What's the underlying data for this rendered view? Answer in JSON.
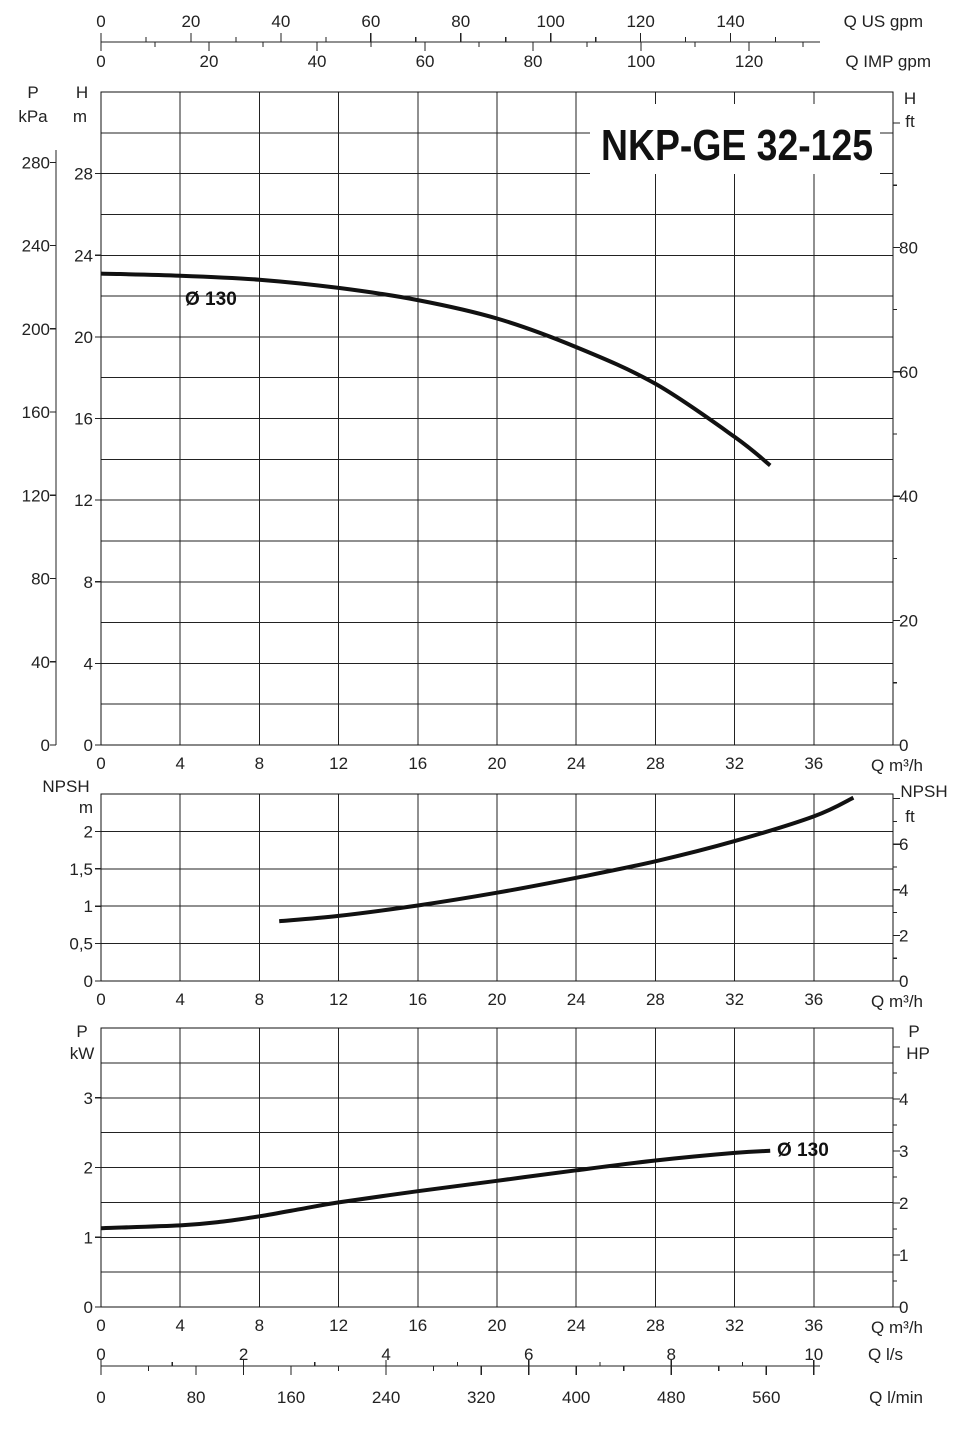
{
  "chart_data": [
    {
      "name": "head",
      "type": "line",
      "title": "NKP-GE 32-125",
      "xlabel": "Q m³/h",
      "xlim": [
        0,
        40
      ],
      "x_ticks": [
        "0",
        "4",
        "8",
        "12",
        "16",
        "20",
        "24",
        "28",
        "32",
        "36"
      ],
      "ylabel_left": "H",
      "ylabel_left_unit": "m",
      "ylim": [
        0,
        32
      ],
      "y_ticks_left": [
        "0",
        "4",
        "8",
        "12",
        "16",
        "20",
        "24",
        "28"
      ],
      "ylabel_kpa": "P",
      "ylabel_kpa_unit": "kPa",
      "y_ticks_kpa": [
        "0",
        "40",
        "80",
        "120",
        "160",
        "200",
        "240",
        "280"
      ],
      "ylabel_right": "H",
      "ylabel_right_unit": "ft",
      "y_ticks_right": [
        "0",
        "20",
        "40",
        "60",
        "80"
      ],
      "top_axis_us": {
        "label": "Q US gpm",
        "ticks": [
          "0",
          "20",
          "40",
          "60",
          "80",
          "100",
          "120",
          "140"
        ]
      },
      "top_axis_imp": {
        "label": "Q IMP gpm",
        "ticks": [
          "0",
          "20",
          "40",
          "60",
          "80",
          "100",
          "120"
        ]
      },
      "series": [
        {
          "name": "Ø 130",
          "x": [
            0,
            4,
            8,
            12,
            16,
            20,
            24,
            28,
            32,
            33.8
          ],
          "y": [
            23.1,
            23.0,
            22.8,
            22.4,
            21.8,
            20.9,
            19.5,
            17.7,
            15.1,
            13.7
          ]
        }
      ],
      "grid": true
    },
    {
      "name": "npsh",
      "type": "line",
      "xlabel": "Q m³/h",
      "xlim": [
        0,
        40
      ],
      "x_ticks": [
        "0",
        "4",
        "8",
        "12",
        "16",
        "20",
        "24",
        "28",
        "32",
        "36"
      ],
      "ylabel_left": "NPSH",
      "ylabel_left_unit": "m",
      "ylim": [
        0,
        2.5
      ],
      "y_ticks_left": [
        "0",
        "0,5",
        "1",
        "1,5",
        "2"
      ],
      "ylabel_right": "NPSH",
      "ylabel_right_unit": "ft",
      "y_ticks_right": [
        "0",
        "2",
        "4",
        "6"
      ],
      "series": [
        {
          "name": "",
          "x": [
            9,
            12,
            16,
            20,
            24,
            28,
            32,
            36,
            38
          ],
          "y": [
            0.8,
            0.87,
            1.01,
            1.18,
            1.38,
            1.6,
            1.87,
            2.2,
            2.45
          ]
        }
      ],
      "grid": true
    },
    {
      "name": "power",
      "type": "line",
      "xlabel": "Q m³/h",
      "xlim": [
        0,
        40
      ],
      "x_ticks": [
        "0",
        "4",
        "8",
        "12",
        "16",
        "20",
        "24",
        "28",
        "32",
        "36"
      ],
      "ylabel_left": "P",
      "ylabel_left_unit": "kW",
      "ylim": [
        0,
        4
      ],
      "y_ticks_left": [
        "0",
        "1",
        "2",
        "3"
      ],
      "ylabel_right": "P",
      "ylabel_right_unit": "HP",
      "y_ticks_right": [
        "0",
        "1",
        "2",
        "3",
        "4"
      ],
      "bottom_axis_ls": {
        "label": "Q l/s",
        "ticks": [
          "0",
          "2",
          "4",
          "6",
          "8",
          "10"
        ]
      },
      "bottom_axis_lmin": {
        "label": "Q l/min",
        "ticks": [
          "0",
          "80",
          "160",
          "240",
          "320",
          "400",
          "480",
          "560"
        ]
      },
      "series": [
        {
          "name": "Ø 130",
          "x": [
            0,
            4,
            6,
            8,
            10,
            12,
            16,
            20,
            24,
            28,
            32,
            33.8
          ],
          "y": [
            1.13,
            1.17,
            1.22,
            1.3,
            1.4,
            1.5,
            1.66,
            1.81,
            1.96,
            2.1,
            2.21,
            2.24
          ]
        }
      ],
      "grid": true
    }
  ]
}
